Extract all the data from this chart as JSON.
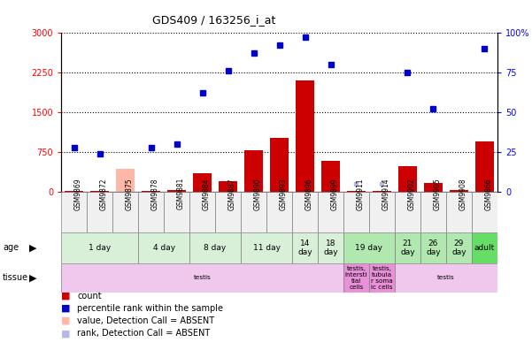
{
  "title": "GDS409 / 163256_i_at",
  "samples": [
    "GSM9869",
    "GSM9872",
    "GSM9875",
    "GSM9878",
    "GSM9881",
    "GSM9884",
    "GSM9887",
    "GSM9890",
    "GSM9893",
    "GSM9896",
    "GSM9899",
    "GSM9911",
    "GSM9914",
    "GSM9902",
    "GSM9905",
    "GSM9908",
    "GSM9866"
  ],
  "count_values": [
    20,
    10,
    20,
    20,
    30,
    350,
    200,
    780,
    1020,
    2100,
    580,
    20,
    20,
    480,
    170,
    40,
    950
  ],
  "rank_values": [
    28,
    24,
    null,
    28,
    30,
    62,
    76,
    87,
    92,
    97,
    80,
    null,
    null,
    75,
    52,
    null,
    90
  ],
  "absent_value": [
    null,
    null,
    430,
    null,
    null,
    null,
    null,
    null,
    null,
    null,
    null,
    null,
    null,
    null,
    null,
    null,
    null
  ],
  "absent_rank": [
    null,
    null,
    null,
    null,
    null,
    null,
    null,
    null,
    null,
    null,
    null,
    5,
    5,
    null,
    null,
    null,
    null
  ],
  "age_groups": [
    {
      "label": "1 day",
      "start": 0,
      "end": 3,
      "color": "#d8f0d8"
    },
    {
      "label": "4 day",
      "start": 3,
      "end": 5,
      "color": "#d8f0d8"
    },
    {
      "label": "8 day",
      "start": 5,
      "end": 7,
      "color": "#d8f0d8"
    },
    {
      "label": "11 day",
      "start": 7,
      "end": 9,
      "color": "#d8f0d8"
    },
    {
      "label": "14\nday",
      "start": 9,
      "end": 10,
      "color": "#d8f0d8"
    },
    {
      "label": "18\nday",
      "start": 10,
      "end": 11,
      "color": "#d8f0d8"
    },
    {
      "label": "19 day",
      "start": 11,
      "end": 13,
      "color": "#b0e8b0"
    },
    {
      "label": "21\nday",
      "start": 13,
      "end": 14,
      "color": "#b0e8b0"
    },
    {
      "label": "26\nday",
      "start": 14,
      "end": 15,
      "color": "#b0e8b0"
    },
    {
      "label": "29\nday",
      "start": 15,
      "end": 16,
      "color": "#b0e8b0"
    },
    {
      "label": "adult",
      "start": 16,
      "end": 17,
      "color": "#66dd66"
    }
  ],
  "tissue_groups": [
    {
      "label": "testis",
      "start": 0,
      "end": 11,
      "color": "#f0c8ee"
    },
    {
      "label": "testis,\nintersti\ntial\ncells",
      "start": 11,
      "end": 12,
      "color": "#e890d8"
    },
    {
      "label": "testis,\ntubula\nr soma\nic cells",
      "start": 12,
      "end": 13,
      "color": "#e890d8"
    },
    {
      "label": "testis",
      "start": 13,
      "end": 17,
      "color": "#f0c8ee"
    }
  ],
  "ylim_left": [
    0,
    3000
  ],
  "ylim_right": [
    0,
    100
  ],
  "yticks_left": [
    0,
    750,
    1500,
    2250,
    3000
  ],
  "yticks_right": [
    0,
    25,
    50,
    75,
    100
  ],
  "bar_color": "#cc0000",
  "dot_color": "#0000cc",
  "absent_val_color": "#ffb8a8",
  "absent_rank_color": "#b8b8e8",
  "grid_color": "#000000",
  "bg_color": "#f0f0f0"
}
